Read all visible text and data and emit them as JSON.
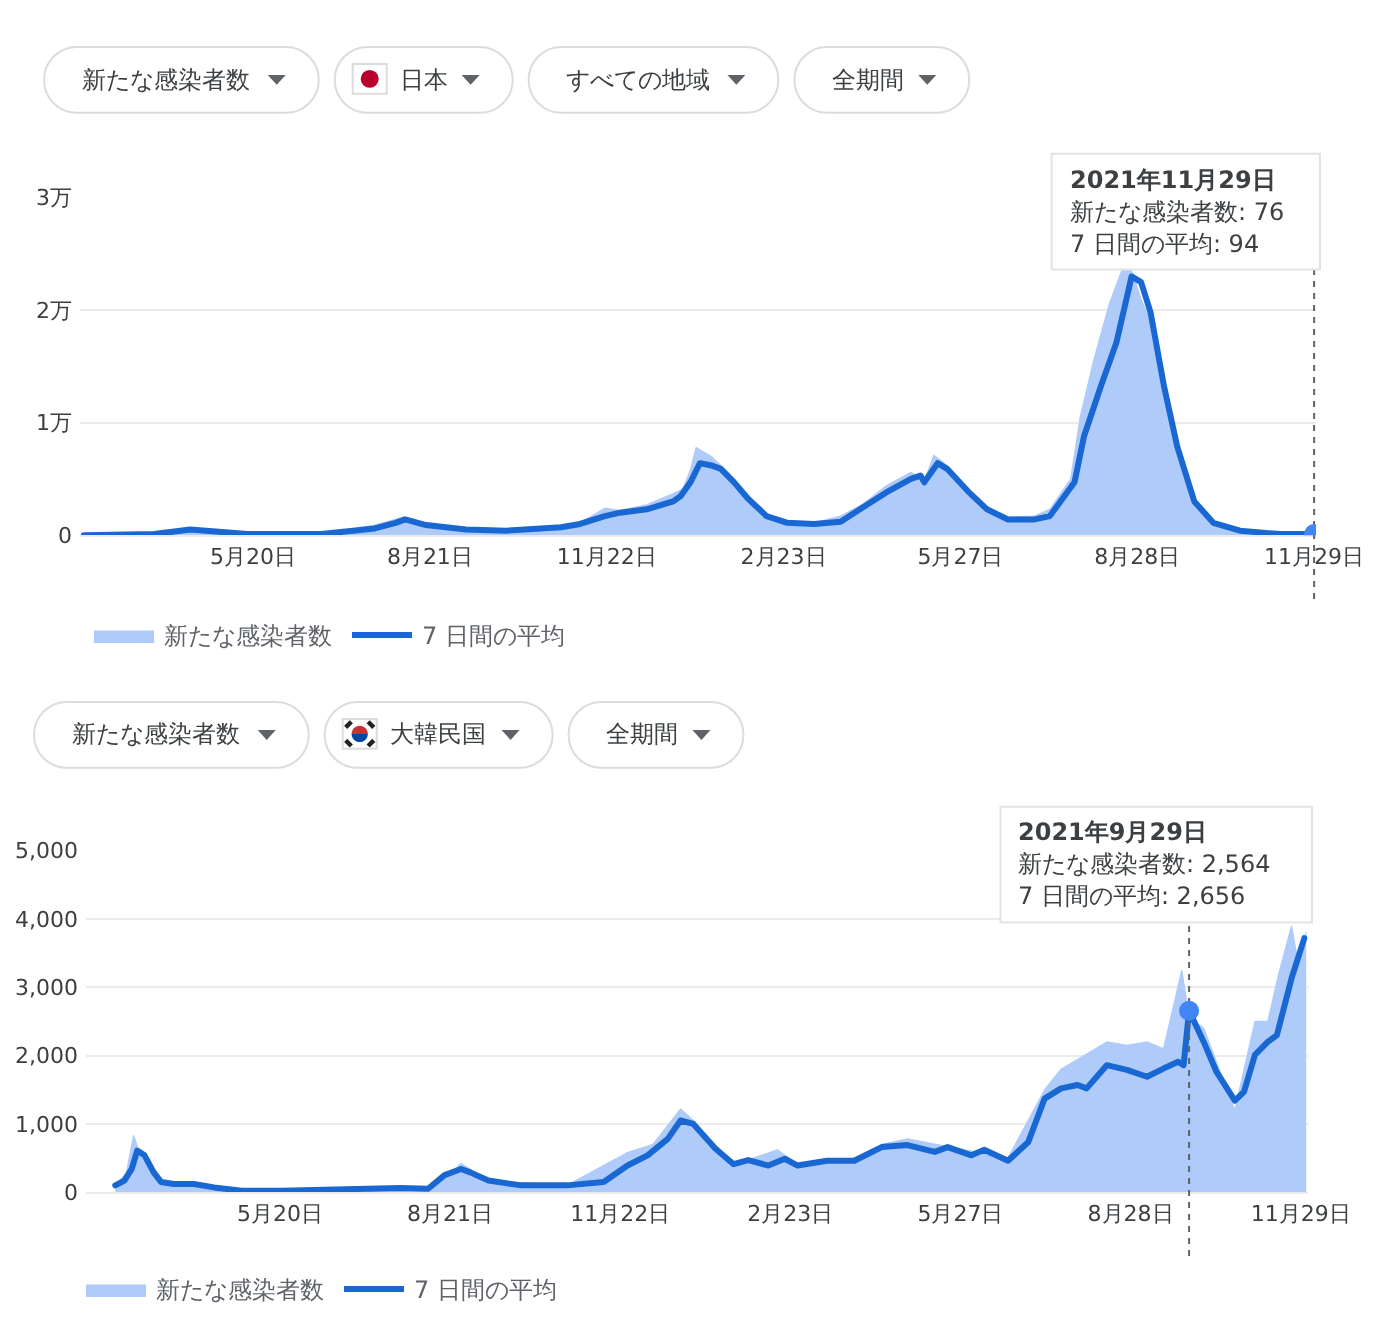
{
  "chart_data": [
    {
      "type": "line",
      "annotations": [
        "新たな感染者数",
        "日本",
        "すべての地域",
        "全期間",
        "2021年11月29日",
        "新たな感染者数: 76",
        "7 日間の平均: 94"
      ],
      "series": [
        {
          "name": "新たな感染者数",
          "type": "area",
          "color": "#aecbfa",
          "x": [
            "2020-02-21",
            "2020-03-29",
            "2020-04-14",
            "2020-05-17",
            "2020-06-25",
            "2020-07-23",
            "2020-08-07",
            "2020-08-19",
            "2020-09-09",
            "2020-09-30",
            "2020-10-29",
            "2020-11-08",
            "2020-11-21",
            "2020-11-29",
            "2020-12-13",
            "2020-12-27",
            "2021-01-01",
            "2021-01-05",
            "2021-01-08",
            "2021-01-16",
            "2021-01-21",
            "2021-01-28",
            "2021-02-04",
            "2021-02-14",
            "2021-02-25",
            "2021-03-11",
            "2021-03-25",
            "2021-04-06",
            "2021-04-18",
            "2021-05-01",
            "2021-05-08",
            "2021-05-13",
            "2021-05-20",
            "2021-05-31",
            "2021-06-10",
            "2021-06-21",
            "2021-07-05",
            "2021-07-13",
            "2021-07-24",
            "2021-07-29",
            "2021-08-05",
            "2021-08-13",
            "2021-08-20",
            "2021-08-25",
            "2021-08-30",
            "2021-09-04",
            "2021-09-11",
            "2021-09-18",
            "2021-09-27",
            "2021-10-07",
            "2021-10-21",
            "2021-11-11",
            "2021-11-29"
          ],
          "values": [
            0,
            0.02,
            0.06,
            0.01,
            0.01,
            0.09,
            0.16,
            0.1,
            0.06,
            0.05,
            0.08,
            0.11,
            0.24,
            0.22,
            0.27,
            0.37,
            0.41,
            0.58,
            0.78,
            0.7,
            0.62,
            0.5,
            0.36,
            0.19,
            0.13,
            0.11,
            0.17,
            0.28,
            0.44,
            0.56,
            0.48,
            0.71,
            0.62,
            0.41,
            0.25,
            0.16,
            0.17,
            0.23,
            0.5,
            1.05,
            1.55,
            2.04,
            2.36,
            2.35,
            2.1,
            1.9,
            1.25,
            0.7,
            0.25,
            0.1,
            0.04,
            0.02,
            0.0076
          ]
        },
        {
          "name": "7 日間の平均",
          "color": "#1967d2",
          "x": [
            "2020-02-21",
            "2020-03-29",
            "2020-04-17",
            "2020-05-17",
            "2020-06-25",
            "2020-07-23",
            "2020-08-03",
            "2020-08-08",
            "2020-08-19",
            "2020-09-09",
            "2020-09-30",
            "2020-10-29",
            "2020-11-08",
            "2020-11-21",
            "2020-11-29",
            "2020-12-13",
            "2020-12-27",
            "2020-12-31",
            "2021-01-05",
            "2021-01-10",
            "2021-01-16",
            "2021-01-21",
            "2021-01-28",
            "2021-02-04",
            "2021-02-14",
            "2021-02-25",
            "2021-03-11",
            "2021-03-25",
            "2021-04-06",
            "2021-04-18",
            "2021-05-01",
            "2021-05-06",
            "2021-05-08",
            "2021-05-15",
            "2021-05-20",
            "2021-05-31",
            "2021-06-10",
            "2021-06-21",
            "2021-07-05",
            "2021-07-13",
            "2021-07-26",
            "2021-07-31",
            "2021-08-09",
            "2021-08-17",
            "2021-08-23",
            "2021-08-25",
            "2021-08-30",
            "2021-09-04",
            "2021-09-11",
            "2021-09-18",
            "2021-09-27",
            "2021-10-07",
            "2021-10-21",
            "2021-11-11",
            "2021-11-29"
          ],
          "values": [
            0,
            0.01,
            0.05,
            0.01,
            0.01,
            0.06,
            0.11,
            0.14,
            0.09,
            0.05,
            0.04,
            0.07,
            0.1,
            0.17,
            0.2,
            0.23,
            0.3,
            0.35,
            0.47,
            0.64,
            0.62,
            0.59,
            0.47,
            0.33,
            0.17,
            0.11,
            0.1,
            0.12,
            0.25,
            0.38,
            0.5,
            0.53,
            0.47,
            0.64,
            0.59,
            0.39,
            0.23,
            0.14,
            0.14,
            0.17,
            0.47,
            0.88,
            1.33,
            1.71,
            2.15,
            2.3,
            2.25,
            1.98,
            1.33,
            0.79,
            0.3,
            0.11,
            0.04,
            0.01,
            0.0094
          ]
        }
      ],
      "xlim": [
        "2020-02-19",
        "2021-11-30"
      ],
      "xticks": [
        {
          "value": "2020-05-20",
          "label": "5月20日"
        },
        {
          "value": "2020-08-21",
          "label": "8月21日"
        },
        {
          "value": "2020-11-22",
          "label": "11月22日"
        },
        {
          "value": "2021-02-23",
          "label": "2月23日"
        },
        {
          "value": "2021-05-27",
          "label": "5月27日"
        },
        {
          "value": "2021-08-28",
          "label": "8月28日"
        },
        {
          "value": "2021-11-29",
          "label": "11月29日"
        }
      ],
      "ylim": [
        0,
        3
      ],
      "yticks": [
        0,
        {
          "value": 1,
          "label": "1万"
        },
        {
          "value": 2,
          "label": "2万"
        },
        {
          "value": 3,
          "label": "3万"
        }
      ],
      "grid": "y",
      "legend": "bottom",
      "ref_lines": [
        {
          "axis": "x",
          "value": "2021-11-29",
          "color": "#5f6368",
          "line_style": "dotted"
        }
      ]
    },
    {
      "type": "line",
      "annotations": [
        "新たな感染者数",
        "大韓民国",
        "全期間",
        "2021年9月29日",
        "新たな感染者数: 2,564",
        "7 日間の平均: 2,656"
      ],
      "series": [
        {
          "name": "新たな感染者数",
          "type": "area",
          "color": "#aecbfa",
          "x": [
            "2020-02-20",
            "2020-02-26",
            "2020-03-01",
            "2020-03-04",
            "2020-03-07",
            "2020-03-12",
            "2020-03-16",
            "2020-04-03",
            "2020-04-29",
            "2020-06-19",
            "2020-07-25",
            "2020-08-12",
            "2020-08-27",
            "2020-09-11",
            "2020-10-24",
            "2020-11-26",
            "2020-12-10",
            "2020-12-25",
            "2021-01-01",
            "2021-01-13",
            "2021-01-23",
            "2021-02-16",
            "2021-02-27",
            "2021-03-30",
            "2021-04-14",
            "2021-04-28",
            "2021-06-02",
            "2021-06-22",
            "2021-07-12",
            "2021-07-21",
            "2021-08-15",
            "2021-08-26",
            "2021-09-06",
            "2021-09-15",
            "2021-09-25",
            "2021-09-29",
            "2021-10-07",
            "2021-10-24",
            "2021-11-04",
            "2021-11-11",
            "2021-11-17",
            "2021-11-24",
            "2021-11-28",
            "2021-12-02"
          ],
          "values": [
            100,
            280,
            830,
            600,
            500,
            250,
            110,
            120,
            20,
            50,
            60,
            50,
            420,
            170,
            100,
            580,
            700,
            1220,
            1050,
            600,
            400,
            620,
            400,
            500,
            700,
            780,
            600,
            500,
            1500,
            1800,
            2200,
            2150,
            2200,
            2100,
            3250,
            2564,
            2400,
            1200,
            2500,
            2500,
            3200,
            3900,
            3300,
            3800
          ]
        },
        {
          "name": "7 日間の平均",
          "color": "#1967d2",
          "x": [
            "2020-02-20",
            "2020-02-25",
            "2020-02-29",
            "2020-03-03",
            "2020-03-07",
            "2020-03-12",
            "2020-03-16",
            "2020-03-23",
            "2020-04-03",
            "2020-04-14",
            "2020-04-29",
            "2020-05-21",
            "2020-06-19",
            "2020-07-25",
            "2020-08-09",
            "2020-08-18",
            "2020-08-27",
            "2020-09-01",
            "2020-09-11",
            "2020-09-29",
            "2020-10-24",
            "2020-11-13",
            "2020-11-26",
            "2020-12-07",
            "2020-12-18",
            "2020-12-25",
            "2021-01-01",
            "2021-01-13",
            "2021-01-23",
            "2021-01-31",
            "2021-02-11",
            "2021-02-20",
            "2021-02-27",
            "2021-03-15",
            "2021-03-30",
            "2021-04-14",
            "2021-04-28",
            "2021-05-13",
            "2021-05-20",
            "2021-06-02",
            "2021-06-09",
            "2021-06-22",
            "2021-07-03",
            "2021-07-12",
            "2021-07-21",
            "2021-07-30",
            "2021-08-04",
            "2021-08-15",
            "2021-08-26",
            "2021-09-06",
            "2021-09-15",
            "2021-09-23",
            "2021-09-26",
            "2021-09-29",
            "2021-10-07",
            "2021-10-14",
            "2021-10-24",
            "2021-10-29",
            "2021-11-04",
            "2021-11-11",
            "2021-11-16",
            "2021-11-24",
            "2021-12-01"
          ],
          "values": [
            100,
            170,
            340,
            610,
            540,
            290,
            150,
            120,
            120,
            70,
            20,
            20,
            40,
            60,
            50,
            250,
            340,
            290,
            170,
            100,
            100,
            150,
            390,
            540,
            780,
            1050,
            1000,
            640,
            410,
            470,
            390,
            490,
            390,
            460,
            460,
            660,
            690,
            590,
            660,
            540,
            620,
            460,
            730,
            1370,
            1520,
            1570,
            1520,
            1860,
            1790,
            1690,
            1810,
            1910,
            1860,
            2656,
            2200,
            1760,
            1340,
            1470,
            2010,
            2200,
            2300,
            3130,
            3720
          ]
        }
      ],
      "xlim": [
        "2020-02-04",
        "2021-12-03"
      ],
      "xticks": [
        {
          "value": "2020-05-20",
          "label": "5月20日"
        },
        {
          "value": "2020-08-21",
          "label": "8月21日"
        },
        {
          "value": "2020-11-22",
          "label": "11月22日"
        },
        {
          "value": "2021-02-23",
          "label": "2月23日"
        },
        {
          "value": "2021-05-27",
          "label": "5月27日"
        },
        {
          "value": "2021-08-28",
          "label": "8月28日"
        },
        {
          "value": "2021-11-29",
          "label": "11月29日"
        }
      ],
      "ylim": [
        0,
        5000
      ],
      "yticks": [
        0,
        {
          "value": 1000,
          "label": "1,000"
        },
        {
          "value": 2000,
          "label": "2,000"
        },
        {
          "value": 3000,
          "label": "3,000"
        },
        {
          "value": 4000,
          "label": "4,000"
        },
        {
          "value": 5000,
          "label": "5,000"
        }
      ],
      "grid": "y",
      "legend": "bottom",
      "ref_lines": [
        {
          "axis": "x",
          "value": "2021-09-29",
          "color": "#5f6368",
          "line_style": "dotted"
        }
      ]
    }
  ]
}
